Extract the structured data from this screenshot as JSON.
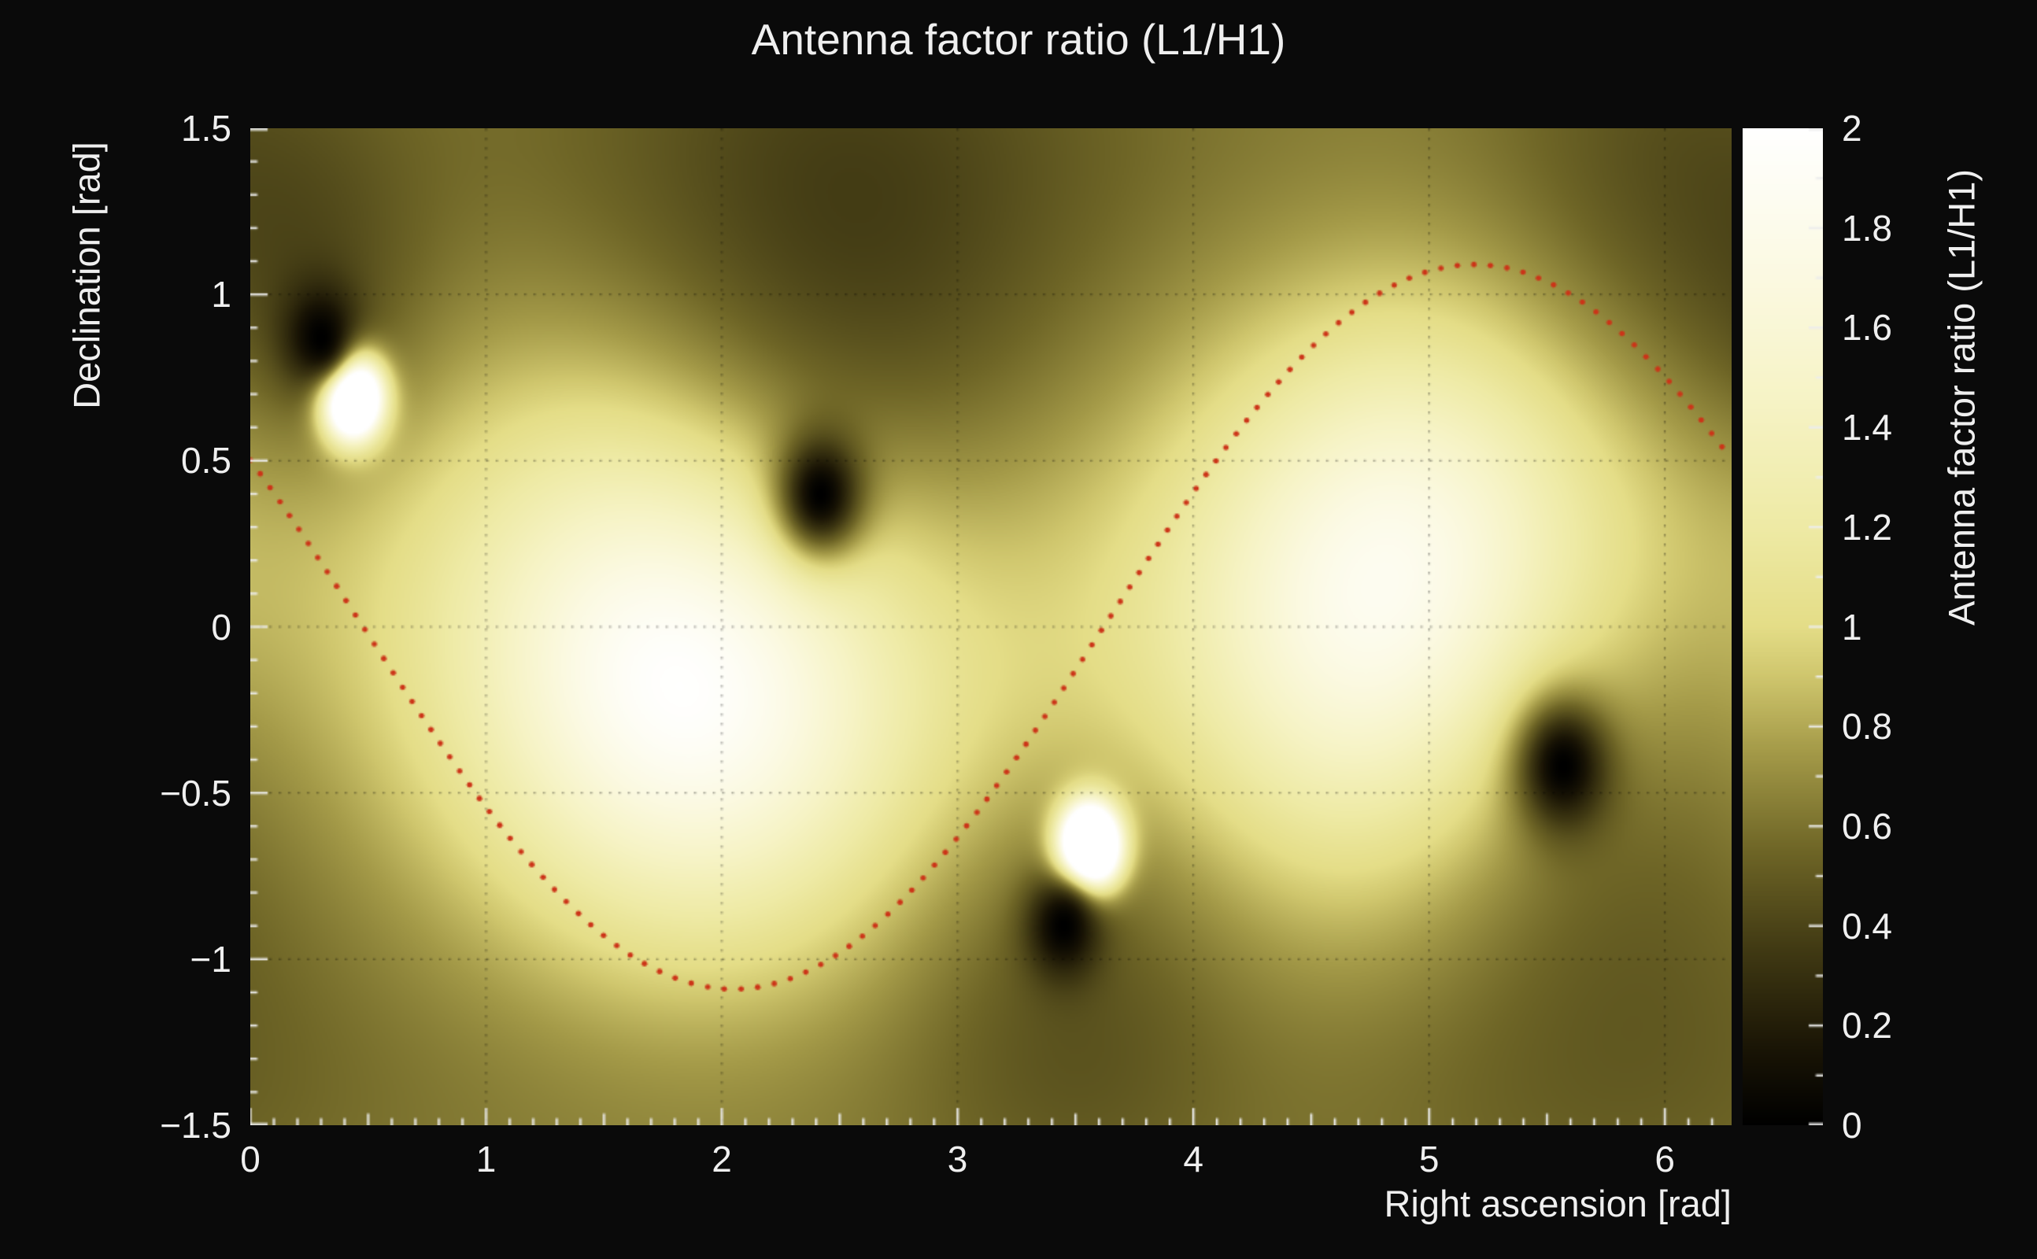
{
  "colors": {
    "background": "#0a0a0a",
    "text": "#efefef",
    "grid": "rgba(0,0,0,0.4)",
    "tick_marks": "#ededed",
    "curve": "#cc3418"
  },
  "chart_data": {
    "type": "heatmap",
    "title": "Antenna factor ratio (L1/H1)",
    "xlabel": "Right ascension [rad]",
    "ylabel": "Declination [rad]",
    "colorbar_label": "Antenna factor ratio (L1/H1)",
    "x_range": [
      0,
      6.2832
    ],
    "y_range": [
      -1.5,
      1.5
    ],
    "z_range": [
      0,
      2
    ],
    "x_ticks": [
      0,
      1,
      2,
      3,
      4,
      5,
      6
    ],
    "x_tick_labels": [
      "0",
      "1",
      "2",
      "3",
      "4",
      "5",
      "6"
    ],
    "y_ticks": [
      -1.5,
      -1,
      -0.5,
      0,
      0.5,
      1,
      1.5
    ],
    "y_tick_labels": [
      "−1.5",
      "−1",
      "−0.5",
      "0",
      "0.5",
      "1",
      "1.5"
    ],
    "colorbar_ticks": [
      0,
      0.2,
      0.4,
      0.6,
      0.8,
      1,
      1.2,
      1.4,
      1.6,
      1.8,
      2
    ],
    "colorbar_tick_labels": [
      "0",
      "0.2",
      "0.4",
      "0.6",
      "0.8",
      "1",
      "1.2",
      "1.4",
      "1.6",
      "1.8",
      "2"
    ],
    "grid": {
      "style": "dotted",
      "x_lines": [
        1,
        2,
        3,
        4,
        5,
        6
      ],
      "y_lines": [
        -1,
        -0.5,
        0,
        0.5,
        1
      ]
    },
    "colormap": {
      "stops": [
        [
          0.0,
          "#000000"
        ],
        [
          0.15,
          "#191405"
        ],
        [
          0.35,
          "#403913"
        ],
        [
          0.55,
          "#6e6526"
        ],
        [
          0.75,
          "#a49a48"
        ],
        [
          0.9,
          "#cfc66d"
        ],
        [
          1.0,
          "#e4dd87"
        ],
        [
          1.2,
          "#eeeaa5"
        ],
        [
          1.45,
          "#f6f3c5"
        ],
        [
          1.7,
          "#fbf9e1"
        ],
        [
          2.0,
          "#ffffff"
        ]
      ]
    },
    "field_model": {
      "description": "ratio field estimated from pixels: value ~1 background, L1 nulls -> 0 (black spots), H1 nulls -> >=2 (white spots), broad dark olive lobes, darker top/bottom edges",
      "base_level": 1.05,
      "edge": {
        "offset": 0.8,
        "amplitude": 0.2
      },
      "dark_halos": [
        {
          "ra": 2.5,
          "dec": 0.95,
          "width": 0.8,
          "strength": 0.52
        },
        {
          "ra": 5.7,
          "dec": -0.5,
          "width": 0.75,
          "strength": 0.5
        },
        {
          "ra": 3.5,
          "dec": -1.05,
          "width": 0.5,
          "strength": 0.32
        },
        {
          "ra": 0.28,
          "dec": 0.95,
          "width": 0.35,
          "strength": 0.3
        },
        {
          "ra": 6.05,
          "dec": 1.3,
          "width": 0.55,
          "strength": 0.3
        }
      ],
      "dark_nulls": [
        {
          "ra": 0.3,
          "dec": 0.87,
          "width": 0.11
        },
        {
          "ra": 2.42,
          "dec": 0.4,
          "width": 0.13
        },
        {
          "ra": 3.45,
          "dec": -0.9,
          "width": 0.11
        },
        {
          "ra": 5.57,
          "dec": -0.42,
          "width": 0.14
        }
      ],
      "bright_peaks": [
        {
          "ra": 0.43,
          "dec": 0.7,
          "width": 0.085,
          "gain": 5.0
        },
        {
          "ra": 1.93,
          "dec": -0.1,
          "width": 0.62,
          "gain": 1.25
        },
        {
          "ra": 3.56,
          "dec": -0.67,
          "width": 0.085,
          "gain": 5.0
        },
        {
          "ra": 5.02,
          "dec": 0.05,
          "width": 0.62,
          "gain": 1.25
        }
      ]
    },
    "overlay_curve": {
      "name": "dotted-sky-track",
      "color": "#cc3418",
      "style": "dotted",
      "model": {
        "type": "sinusoid",
        "amplitude": 1.09,
        "phase": 3.62
      },
      "sample_points": [
        [
          0.0,
          0.5
        ],
        [
          0.4,
          0.09
        ],
        [
          0.8,
          -0.34
        ],
        [
          1.2,
          -0.72
        ],
        [
          1.6,
          -0.98
        ],
        [
          2.0,
          -1.09
        ],
        [
          2.4,
          -1.02
        ],
        [
          2.8,
          -0.8
        ],
        [
          3.2,
          -0.44
        ],
        [
          3.6,
          -0.02
        ],
        [
          4.0,
          0.4
        ],
        [
          4.4,
          0.77
        ],
        [
          4.8,
          1.01
        ],
        [
          5.2,
          1.09
        ],
        [
          5.6,
          1.0
        ],
        [
          6.0,
          0.75
        ],
        [
          6.28,
          0.51
        ]
      ]
    }
  }
}
